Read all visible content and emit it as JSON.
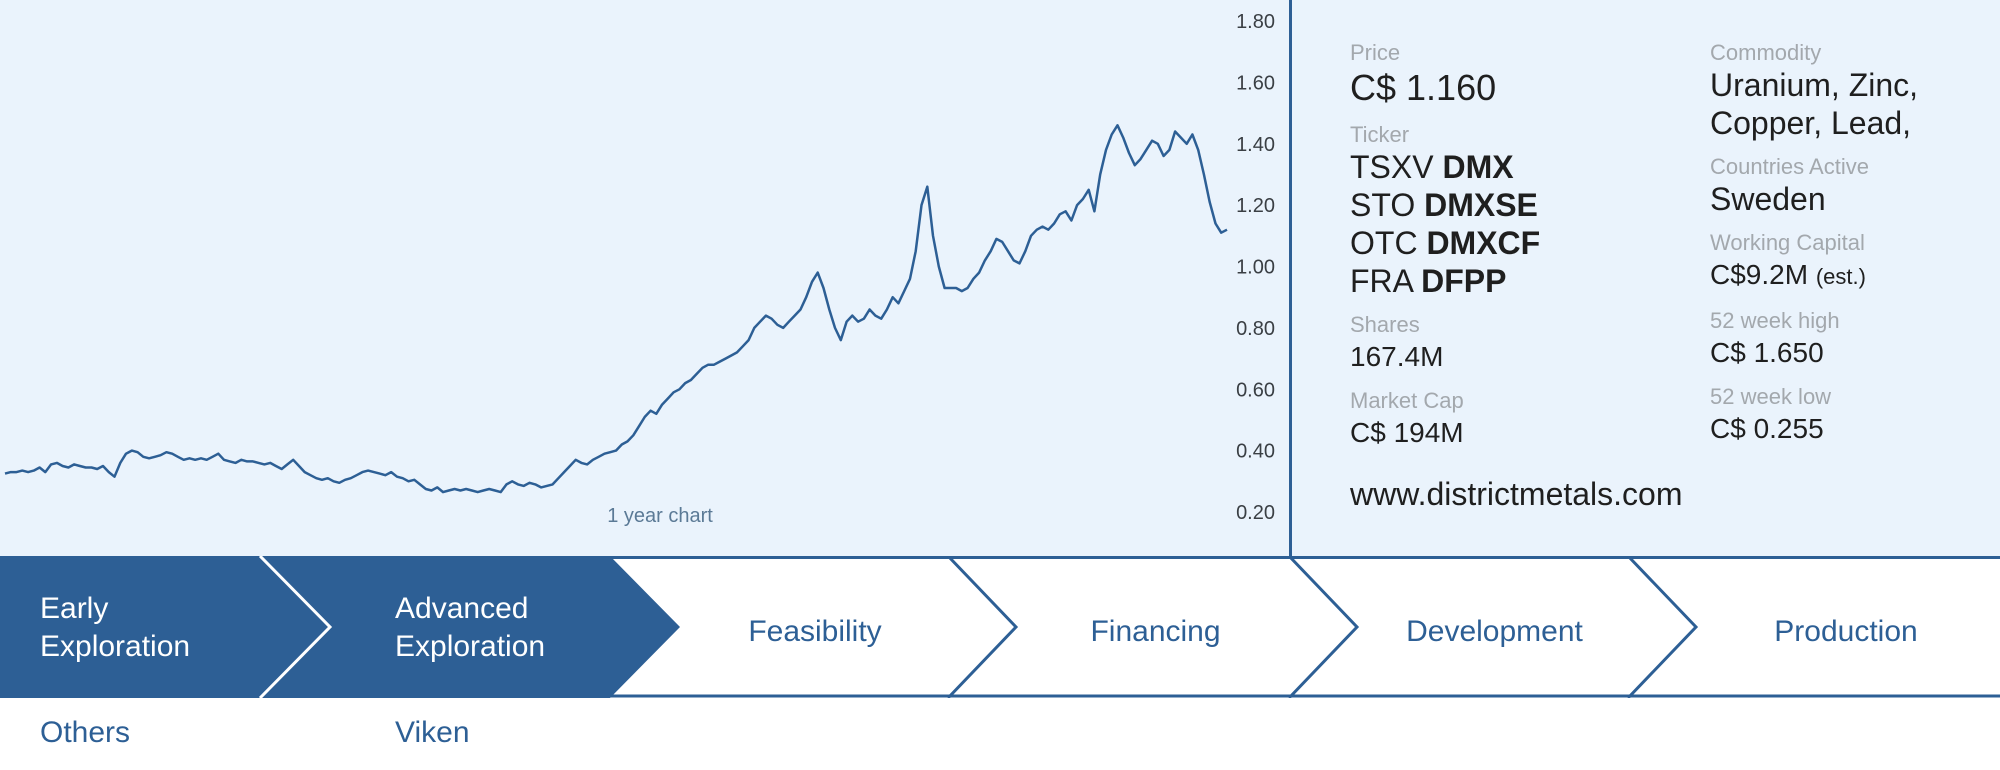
{
  "chart_data": {
    "type": "line",
    "caption": "1 year chart",
    "y_ticks": [
      "1.80",
      "1.60",
      "1.40",
      "1.20",
      "1.00",
      "0.80",
      "0.60",
      "0.40",
      "0.20"
    ],
    "ylim": [
      0.2,
      1.8
    ],
    "line_color": "#2d5f95",
    "grid": false,
    "values": [
      0.325,
      0.33,
      0.33,
      0.335,
      0.33,
      0.335,
      0.345,
      0.33,
      0.355,
      0.36,
      0.35,
      0.345,
      0.355,
      0.35,
      0.345,
      0.345,
      0.34,
      0.35,
      0.33,
      0.315,
      0.36,
      0.39,
      0.4,
      0.395,
      0.38,
      0.375,
      0.38,
      0.385,
      0.395,
      0.39,
      0.38,
      0.37,
      0.375,
      0.37,
      0.375,
      0.37,
      0.38,
      0.39,
      0.37,
      0.365,
      0.36,
      0.37,
      0.365,
      0.365,
      0.36,
      0.355,
      0.36,
      0.35,
      0.34,
      0.355,
      0.37,
      0.35,
      0.33,
      0.32,
      0.31,
      0.305,
      0.31,
      0.3,
      0.295,
      0.305,
      0.31,
      0.32,
      0.33,
      0.335,
      0.33,
      0.325,
      0.32,
      0.33,
      0.315,
      0.31,
      0.3,
      0.305,
      0.29,
      0.275,
      0.27,
      0.28,
      0.265,
      0.27,
      0.275,
      0.27,
      0.275,
      0.27,
      0.265,
      0.27,
      0.275,
      0.27,
      0.265,
      0.29,
      0.3,
      0.29,
      0.285,
      0.295,
      0.29,
      0.28,
      0.285,
      0.29,
      0.31,
      0.33,
      0.35,
      0.37,
      0.36,
      0.355,
      0.37,
      0.38,
      0.39,
      0.395,
      0.4,
      0.42,
      0.43,
      0.45,
      0.48,
      0.51,
      0.53,
      0.52,
      0.55,
      0.57,
      0.59,
      0.6,
      0.62,
      0.63,
      0.65,
      0.67,
      0.68,
      0.68,
      0.69,
      0.7,
      0.71,
      0.72,
      0.74,
      0.76,
      0.8,
      0.82,
      0.84,
      0.83,
      0.81,
      0.8,
      0.82,
      0.84,
      0.86,
      0.9,
      0.95,
      0.98,
      0.93,
      0.86,
      0.8,
      0.76,
      0.82,
      0.84,
      0.82,
      0.83,
      0.86,
      0.84,
      0.83,
      0.86,
      0.9,
      0.88,
      0.92,
      0.96,
      1.05,
      1.2,
      1.26,
      1.1,
      1.0,
      0.93,
      0.93,
      0.93,
      0.92,
      0.93,
      0.96,
      0.98,
      1.02,
      1.05,
      1.09,
      1.08,
      1.05,
      1.02,
      1.01,
      1.05,
      1.1,
      1.12,
      1.13,
      1.12,
      1.14,
      1.17,
      1.18,
      1.15,
      1.2,
      1.22,
      1.25,
      1.18,
      1.3,
      1.38,
      1.43,
      1.46,
      1.42,
      1.37,
      1.33,
      1.35,
      1.38,
      1.41,
      1.4,
      1.36,
      1.38,
      1.44,
      1.42,
      1.4,
      1.43,
      1.38,
      1.3,
      1.21,
      1.14,
      1.11,
      1.12
    ]
  },
  "info": {
    "price_label": "Price",
    "price_value": "C$ 1.160",
    "ticker_label": "Ticker",
    "tickers": [
      {
        "exchange": "TSXV",
        "symbol": "DMX"
      },
      {
        "exchange": "STO",
        "symbol": "DMXSE"
      },
      {
        "exchange": "OTC",
        "symbol": "DMXCF"
      },
      {
        "exchange": "FRA",
        "symbol": "DFPP"
      }
    ],
    "shares_label": "Shares",
    "shares_value": "167.4M",
    "market_cap_label": "Market Cap",
    "market_cap_value": "C$ 194M",
    "website": "www.districtmetals.com",
    "commodity_label": "Commodity",
    "commodity_line1": "Uranium, Zinc,",
    "commodity_line2": "Copper, Lead,",
    "countries_label": "Countries Active",
    "countries_value": "Sweden",
    "working_capital_label": "Working Capital",
    "working_capital_value": "C$9.2M",
    "working_capital_note": "(est.)",
    "high_label": "52 week high",
    "high_value": "C$ 1.650",
    "low_label": "52 week low",
    "low_value": "C$ 0.255"
  },
  "stages": [
    {
      "line1": "Early",
      "line2": "Exploration",
      "active": true
    },
    {
      "line1": "Advanced",
      "line2": "Exploration",
      "active": true
    },
    {
      "line1": "Feasibility",
      "line2": "",
      "active": false
    },
    {
      "line1": "Financing",
      "line2": "",
      "active": false
    },
    {
      "line1": "Development",
      "line2": "",
      "active": false
    },
    {
      "line1": "Production",
      "line2": "",
      "active": false
    }
  ],
  "projects": [
    {
      "stage": "Early Exploration",
      "label": "Others"
    },
    {
      "stage": "Advanced Exploration",
      "label": "Viken"
    }
  ],
  "colors": {
    "accent": "#2d5f95",
    "panel_bg": "#eaf3fc",
    "label_grey": "#a3a8ad",
    "text_dark": "#1f1f1f"
  }
}
